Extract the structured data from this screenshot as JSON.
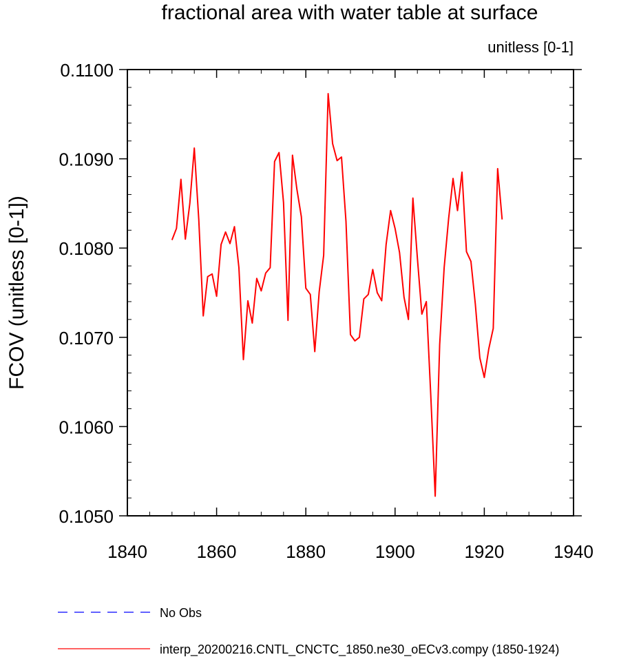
{
  "chart_data": {
    "type": "line",
    "title": "fractional area with water table at surface",
    "units_label": "unitless [0-1]",
    "ylabel": "FCOV  (unitless [0-1])",
    "xlabel": "",
    "xlim": [
      1840,
      1940
    ],
    "ylim": [
      0.105,
      0.11
    ],
    "x_ticks": [
      1840,
      1860,
      1880,
      1900,
      1920,
      1940
    ],
    "x_tick_labels": [
      "1840",
      "1860",
      "1880",
      "1900",
      "1920",
      "1940"
    ],
    "y_ticks": [
      0.105,
      0.106,
      0.107,
      0.108,
      0.109,
      0.11
    ],
    "y_tick_labels": [
      "0.1050",
      "0.1060",
      "0.1070",
      "0.1080",
      "0.1090",
      "0.1100"
    ],
    "grid": false,
    "legend": [
      {
        "name": "No Obs",
        "color": "#0000ff",
        "style": "dashed"
      },
      {
        "name": "interp_20200216.CNTL_CNCTC_1850.ne30_oECv3.compy (1850-1924)",
        "color": "#ff0000",
        "style": "solid"
      }
    ],
    "series": [
      {
        "name": "interp_20200216.CNTL_CNCTC_1850.ne30_oECv3.compy (1850-1924)",
        "color": "#ff0000",
        "x": [
          1850,
          1851,
          1852,
          1853,
          1854,
          1855,
          1856,
          1857,
          1858,
          1859,
          1860,
          1861,
          1862,
          1863,
          1864,
          1865,
          1866,
          1867,
          1868,
          1869,
          1870,
          1871,
          1872,
          1873,
          1874,
          1875,
          1876,
          1877,
          1878,
          1879,
          1880,
          1881,
          1882,
          1883,
          1884,
          1885,
          1886,
          1887,
          1888,
          1889,
          1890,
          1891,
          1892,
          1893,
          1894,
          1895,
          1896,
          1897,
          1898,
          1899,
          1900,
          1901,
          1902,
          1903,
          1904,
          1905,
          1906,
          1907,
          1908,
          1909,
          1910,
          1911,
          1912,
          1913,
          1914,
          1915,
          1916,
          1917,
          1918,
          1919,
          1920,
          1921,
          1922,
          1923,
          1924
        ],
        "y": [
          0.10809,
          0.10822,
          0.10877,
          0.1081,
          0.1085,
          0.10912,
          0.10832,
          0.10724,
          0.10768,
          0.10771,
          0.10746,
          0.10804,
          0.10818,
          0.10805,
          0.10824,
          0.10778,
          0.10675,
          0.10741,
          0.10716,
          0.10766,
          0.10752,
          0.10772,
          0.10778,
          0.10897,
          0.10907,
          0.10851,
          0.10719,
          0.10904,
          0.10866,
          0.10835,
          0.10755,
          0.10748,
          0.10684,
          0.10751,
          0.10792,
          0.10973,
          0.10917,
          0.10898,
          0.10902,
          0.1083,
          0.10703,
          0.10696,
          0.107,
          0.10743,
          0.10748,
          0.10776,
          0.1075,
          0.10741,
          0.10804,
          0.10842,
          0.10822,
          0.10795,
          0.10745,
          0.1072,
          0.10856,
          0.10789,
          0.10726,
          0.1074,
          0.10636,
          0.10522,
          0.10692,
          0.10778,
          0.10833,
          0.10878,
          0.10842,
          0.10885,
          0.10796,
          0.10785,
          0.10737,
          0.10677,
          0.10655,
          0.10687,
          0.1071,
          0.10889,
          0.10832
        ]
      }
    ]
  }
}
